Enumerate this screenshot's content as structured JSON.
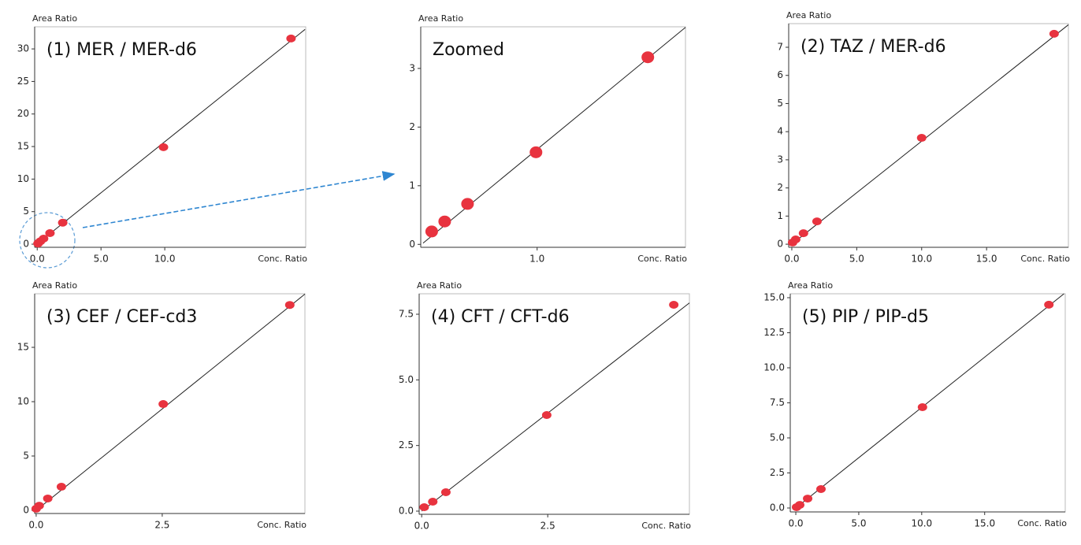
{
  "chart_data": [
    {
      "type": "scatter",
      "title": "(1) MER / MER-d6",
      "x_label": "Conc. Ratio",
      "y_label": "Area Ratio",
      "color": "#e8333f",
      "x": [
        0.06,
        0.1,
        0.25,
        0.5,
        1.0,
        2.0,
        9.9,
        19.9
      ],
      "values": [
        0.1,
        0.2,
        0.45,
        0.85,
        1.7,
        3.3,
        14.9,
        31.6
      ],
      "fit_line": {
        "x": [
          0,
          21
        ],
        "y": [
          0.05,
          33.0
        ]
      },
      "xlim": [
        -0.2,
        21.05
      ],
      "ylim": [
        -0.48,
        33.4
      ],
      "xticks": [
        {
          "value": 0,
          "label": "0.0"
        },
        {
          "value": 5,
          "label": "5.0"
        },
        {
          "value": 10,
          "label": "10.0"
        }
      ],
      "yticks": [
        0,
        5,
        10,
        15,
        20,
        25,
        30
      ]
    },
    {
      "type": "scatter",
      "title": "Zoomed",
      "x_label": "Conc. Ratio",
      "y_label": "Area Ratio",
      "color": "#e8333f",
      "x": [
        0.076,
        0.19,
        0.39,
        0.99,
        1.97
      ],
      "values": [
        0.22,
        0.39,
        0.69,
        1.57,
        3.19
      ],
      "fit_line": {
        "x": [
          0,
          2.3
        ],
        "y": [
          0.02,
          3.7
        ]
      },
      "xlim": [
        -0.02,
        2.3
      ],
      "ylim": [
        -0.05,
        3.71
      ],
      "xticks": [
        {
          "value": 1,
          "label": "1.0"
        }
      ],
      "yticks": [
        0,
        1,
        2,
        3
      ]
    },
    {
      "type": "scatter",
      "title": "(2) TAZ / MER-d6",
      "x_label": "Conc. Ratio",
      "y_label": "Area Ratio",
      "color": "#e8333f",
      "x": [
        0.06,
        0.3,
        0.9,
        1.94,
        10.0,
        20.2
      ],
      "values": [
        0.06,
        0.17,
        0.39,
        0.81,
        3.78,
        7.48
      ],
      "fit_line": {
        "x": [
          0,
          21.3
        ],
        "y": [
          0,
          7.8
        ]
      },
      "xlim": [
        -0.24,
        21.3
      ],
      "ylim": [
        -0.11,
        7.84
      ],
      "xticks": [
        {
          "value": 0,
          "label": "0.0"
        },
        {
          "value": 5,
          "label": "5.0"
        },
        {
          "value": 10,
          "label": "10.0"
        },
        {
          "value": 15,
          "label": "15.0"
        }
      ],
      "yticks": [
        0,
        1,
        2,
        3,
        4,
        5,
        6,
        7
      ]
    },
    {
      "type": "scatter",
      "title": "(3) CEF / CEF-cd3",
      "x_label": "Conc. Ratio",
      "y_label": "Area Ratio",
      "color": "#e8333f",
      "x": [
        0.0,
        0.06,
        0.23,
        0.5,
        2.52,
        5.03
      ],
      "values": [
        0.15,
        0.43,
        1.09,
        2.17,
        9.78,
        18.9
      ],
      "fit_line": {
        "x": [
          0,
          5.33
        ],
        "y": [
          0,
          19.9
        ]
      },
      "xlim": [
        -0.03,
        5.33
      ],
      "ylim": [
        -0.29,
        19.93
      ],
      "xticks": [
        {
          "value": 0,
          "label": "0.0"
        },
        2.5
      ],
      "yticks": [
        0,
        5,
        10,
        15
      ]
    },
    {
      "type": "scatter",
      "title": "(4) CFT / CFT-d6",
      "x_label": "Conc. Ratio",
      "y_label": "Area Ratio",
      "color": "#e8333f",
      "x": [
        0.05,
        0.22,
        0.48,
        2.48,
        5.0
      ],
      "values": [
        0.15,
        0.36,
        0.72,
        3.66,
        7.86
      ],
      "fit_line": {
        "x": [
          0,
          5.31
        ],
        "y": [
          0,
          7.93
        ]
      },
      "xlim": [
        -0.05,
        5.31
      ],
      "ylim": [
        -0.12,
        8.28
      ],
      "xticks": [
        {
          "value": 0,
          "label": "0.0"
        },
        2.5
      ],
      "yticks": [
        {
          "value": 0,
          "label": "0.0"
        },
        2.5,
        {
          "value": 5,
          "label": "5.0"
        },
        7.5
      ]
    },
    {
      "type": "scatter",
      "title": "(5) PIP / PIP-d5",
      "x_label": "Conc. Ratio",
      "y_label": "Area Ratio",
      "color": "#e8333f",
      "x": [
        0.06,
        0.31,
        0.94,
        2.0,
        10.06,
        20.1
      ],
      "values": [
        0.06,
        0.22,
        0.67,
        1.35,
        7.19,
        14.5
      ],
      "fit_line": {
        "x": [
          0,
          21.3
        ],
        "y": [
          0,
          15.28
        ]
      },
      "xlim": [
        -0.44,
        21.4
      ],
      "ylim": [
        -0.28,
        15.28
      ],
      "xticks": [
        {
          "value": 0,
          "label": "0.0"
        },
        {
          "value": 5,
          "label": "5.0"
        },
        {
          "value": 10,
          "label": "10.0"
        },
        {
          "value": 15,
          "label": "15.0"
        }
      ],
      "yticks": [
        {
          "value": 0,
          "label": "0.0"
        },
        2.5,
        {
          "value": 5,
          "label": "5.0"
        },
        7.5,
        {
          "value": 10,
          "label": "10.0"
        },
        12.5,
        {
          "value": 15,
          "label": "15.0"
        }
      ]
    }
  ]
}
